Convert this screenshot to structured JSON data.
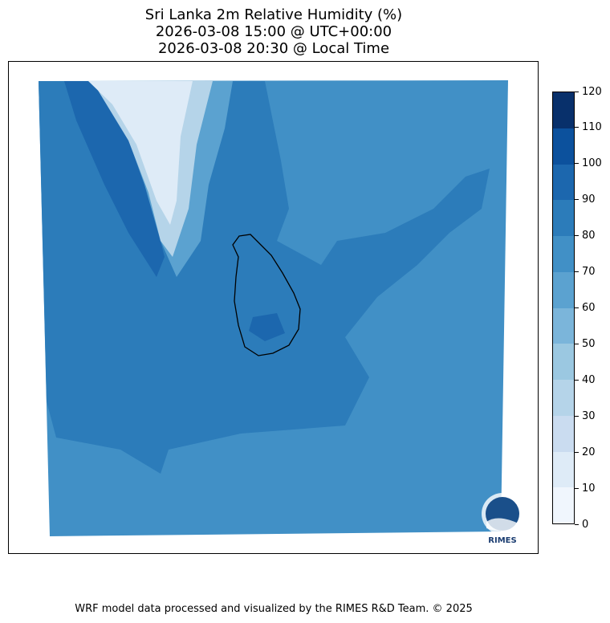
{
  "title": {
    "line1": "Sri Lanka 2m Relative Humidity (%)",
    "line2": "2026-03-08 15:00 @ UTC+00:00",
    "line3": "2026-03-08 20:30 @ Local Time"
  },
  "colorbar": {
    "ticks": [
      "0",
      "10",
      "20",
      "30",
      "40",
      "50",
      "60",
      "70",
      "80",
      "90",
      "100",
      "110",
      "120"
    ],
    "colors": [
      "#f0f6fd",
      "#deebf7",
      "#cadcf0",
      "#b5d4e9",
      "#9bc8e1",
      "#7bb5da",
      "#5ba2d0",
      "#4190c6",
      "#2c7cba",
      "#1c67ae",
      "#0c519d",
      "#08306b"
    ]
  },
  "logo": {
    "text": "RIMES"
  },
  "footer": "WRF model data processed and visualized by the RIMES R&D Team. © 2025"
}
